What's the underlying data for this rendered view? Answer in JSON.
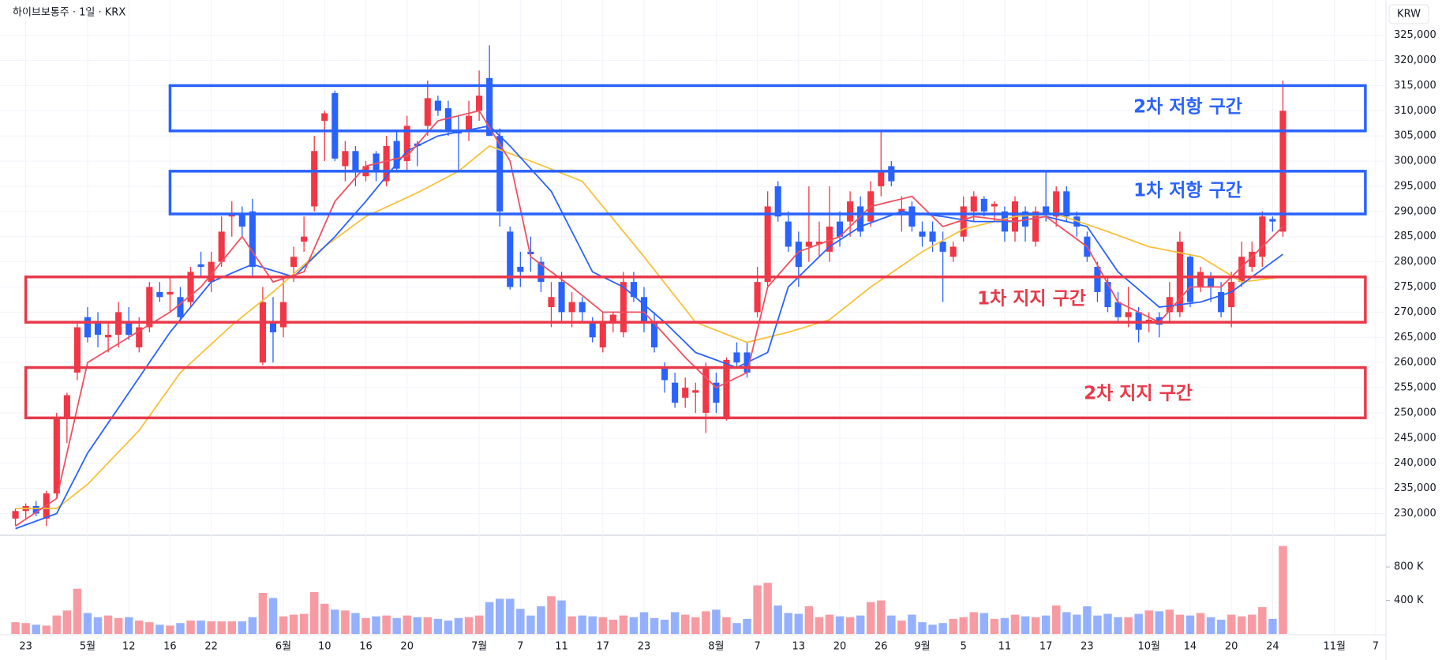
{
  "chart_data": {
    "type": "candlestick",
    "title": "하이브보통주 · 1일 · KRX",
    "currency": "KRW",
    "candles": {
      "open": [
        229000,
        230500,
        231500,
        229000,
        234000,
        249000,
        258000,
        269000,
        268000,
        265000,
        265500,
        268000,
        263000,
        267000,
        274000,
        273500,
        273000,
        272000,
        279500,
        276000,
        280000,
        289000,
        289500,
        290000,
        260000,
        268000,
        267000,
        279000,
        284000,
        291000,
        308000,
        313500,
        299000,
        302000,
        297000,
        301500,
        296000,
        304000,
        300000,
        303500,
        307000,
        312000,
        310500,
        306000,
        306000,
        310000,
        316500,
        305000,
        286000,
        279000,
        282000,
        280000,
        271000,
        276000,
        270000,
        272000,
        268000,
        263000,
        268000,
        266000,
        276000,
        273000,
        268000,
        259000,
        256000,
        253000,
        254000,
        250000,
        256000,
        249000,
        262000,
        262000,
        270000,
        276000,
        295000,
        288000,
        284000,
        283000,
        283500,
        282000,
        288000,
        288000,
        291000,
        288000,
        295000,
        299000,
        290000,
        291000,
        286000,
        286000,
        284000,
        281000,
        285000,
        290000,
        292500,
        291000,
        290000,
        286000,
        290000,
        284000,
        291000,
        289000,
        294000,
        289000,
        285000,
        279000,
        276000,
        272000,
        269000,
        270000,
        268000,
        269000,
        270000,
        270000,
        281000,
        275000,
        277000,
        274000,
        271000,
        276000,
        279000,
        281000,
        288500,
        286000
      ],
      "high": [
        231000,
        232000,
        232500,
        234500,
        250000,
        254000,
        268000,
        271000,
        270000,
        268000,
        272000,
        271000,
        269000,
        276000,
        276000,
        277000,
        275000,
        279000,
        282000,
        282000,
        289000,
        292000,
        291000,
        292500,
        275000,
        273000,
        277000,
        283000,
        289000,
        305000,
        310000,
        314000,
        304000,
        303000,
        300000,
        302000,
        305000,
        306000,
        309000,
        304000,
        316000,
        313000,
        312000,
        309000,
        312000,
        318000,
        323000,
        306500,
        287000,
        282000,
        285000,
        281000,
        276000,
        278000,
        274000,
        273000,
        269000,
        270000,
        270000,
        278000,
        278000,
        275000,
        270000,
        260000,
        258000,
        257000,
        256000,
        260000,
        258000,
        261000,
        264000,
        264000,
        279000,
        294000,
        296000,
        290000,
        286000,
        295000,
        288000,
        295000,
        290000,
        294000,
        293000,
        296000,
        306000,
        300000,
        293000,
        292000,
        288000,
        288000,
        286000,
        284000,
        293000,
        294000,
        293000,
        292000,
        291000,
        293000,
        291000,
        291000,
        298000,
        295000,
        295000,
        290000,
        286000,
        280000,
        277000,
        274000,
        275000,
        271000,
        270000,
        270000,
        276000,
        286000,
        281500,
        279000,
        278000,
        276000,
        278000,
        284000,
        284000,
        290000,
        289000,
        316000
      ],
      "low": [
        227500,
        229000,
        229500,
        227500,
        233000,
        244000,
        256500,
        264000,
        263000,
        262000,
        263000,
        264500,
        262000,
        266000,
        272000,
        270000,
        268000,
        271000,
        277000,
        274000,
        279000,
        285000,
        285000,
        277000,
        259500,
        260000,
        265000,
        276000,
        282000,
        290000,
        300000,
        300000,
        296000,
        295000,
        296000,
        296000,
        295000,
        298000,
        298000,
        299000,
        305000,
        309000,
        305000,
        298000,
        304000,
        308000,
        305000,
        287000,
        274500,
        275000,
        278000,
        274000,
        267000,
        268000,
        267000,
        268000,
        264000,
        262000,
        266000,
        265000,
        272000,
        266000,
        262000,
        254000,
        251000,
        251000,
        250000,
        246000,
        250000,
        248500,
        259000,
        257000,
        269000,
        275000,
        288000,
        282000,
        275000,
        280000,
        281000,
        280000,
        283000,
        285000,
        285000,
        287000,
        293000,
        295000,
        286000,
        286000,
        283000,
        282000,
        272000,
        280000,
        284000,
        288000,
        289000,
        288000,
        284000,
        284000,
        284000,
        283000,
        288000,
        287000,
        288000,
        285000,
        280000,
        272000,
        270000,
        268000,
        267000,
        264000,
        266000,
        265000,
        268000,
        269000,
        271000,
        274000,
        272000,
        269000,
        267000,
        275000,
        278000,
        279000,
        286000,
        285000
      ],
      "close": [
        230500,
        231500,
        230000,
        234000,
        249000,
        253500,
        267000,
        265000,
        265500,
        265500,
        270000,
        265500,
        267000,
        275000,
        273000,
        274000,
        269000,
        278000,
        279000,
        280000,
        286000,
        289500,
        287000,
        279000,
        272000,
        266000,
        272000,
        281000,
        285000,
        302000,
        309500,
        300500,
        302000,
        298000,
        299000,
        298000,
        303000,
        298500,
        307000,
        303000,
        312500,
        310000,
        306000,
        305500,
        309000,
        313000,
        305000,
        290000,
        275000,
        278000,
        281500,
        276000,
        273000,
        270000,
        272000,
        270000,
        265000,
        268000,
        269500,
        276000,
        273000,
        268000,
        263000,
        256500,
        252000,
        255000,
        254500,
        259000,
        252000,
        260500,
        260000,
        258000,
        276000,
        291000,
        289000,
        283000,
        279000,
        284000,
        284000,
        287000,
        285000,
        292000,
        286000,
        294000,
        298000,
        296000,
        290500,
        287000,
        285000,
        284000,
        282000,
        283000,
        291000,
        293000,
        290000,
        291500,
        286000,
        292000,
        287000,
        290000,
        289500,
        294000,
        289000,
        287000,
        281000,
        274000,
        271000,
        269000,
        270000,
        266500,
        268500,
        267500,
        273000,
        284000,
        272000,
        278000,
        275000,
        270000,
        276000,
        281000,
        282000,
        289000,
        288000,
        310000
      ]
    },
    "up_color": "#f23645",
    "down_color": "#2962ff",
    "volume": [
      140000,
      130000,
      110000,
      100000,
      220000,
      280000,
      540000,
      250000,
      200000,
      220000,
      190000,
      200000,
      160000,
      140000,
      110000,
      100000,
      130000,
      160000,
      160000,
      150000,
      150000,
      150000,
      150000,
      200000,
      490000,
      430000,
      210000,
      230000,
      240000,
      500000,
      360000,
      290000,
      280000,
      250000,
      190000,
      210000,
      220000,
      190000,
      220000,
      200000,
      200000,
      180000,
      160000,
      190000,
      200000,
      220000,
      380000,
      420000,
      420000,
      300000,
      220000,
      330000,
      450000,
      400000,
      210000,
      220000,
      210000,
      200000,
      170000,
      220000,
      200000,
      260000,
      190000,
      170000,
      260000,
      230000,
      200000,
      270000,
      290000,
      200000,
      130000,
      180000,
      580000,
      610000,
      340000,
      250000,
      240000,
      330000,
      200000,
      230000,
      210000,
      200000,
      220000,
      380000,
      400000,
      220000,
      160000,
      230000,
      140000,
      110000,
      130000,
      180000,
      200000,
      260000,
      250000,
      180000,
      190000,
      230000,
      210000,
      200000,
      220000,
      340000,
      260000,
      230000,
      330000,
      220000,
      240000,
      200000,
      200000,
      240000,
      280000,
      270000,
      290000,
      230000,
      220000,
      250000,
      200000,
      170000,
      230000,
      210000,
      230000,
      320000,
      180000,
      1050000
    ],
    "moving_averages": [
      {
        "color": "#f7c13a",
        "x": [
          0,
          4,
          7,
          12,
          16,
          21,
          25,
          30,
          34,
          39,
          43,
          46,
          50,
          55,
          57,
          61,
          66,
          71,
          75,
          79,
          83,
          88,
          92,
          97,
          101,
          106,
          110,
          115,
          119,
          123
        ],
        "values": [
          231000,
          231000,
          235800,
          246500,
          258000,
          267400,
          274000,
          283000,
          289000,
          293700,
          298000,
          303000,
          300000,
          296000,
          291000,
          281000,
          268000,
          264000,
          266000,
          268500,
          275000,
          282000,
          286500,
          289000,
          289500,
          286000,
          283000,
          281000,
          276000,
          277000
        ]
      },
      {
        "color": "#2962ff",
        "x": [
          0,
          4,
          7,
          12,
          15,
          19,
          23,
          27,
          31,
          34,
          38,
          41,
          46,
          48,
          52,
          56,
          59,
          63,
          66,
          70,
          73,
          75,
          79,
          82,
          86,
          90,
          93,
          97,
          100,
          104,
          107,
          111,
          115,
          118,
          123
        ],
        "values": [
          227000,
          230000,
          242000,
          257000,
          266000,
          276000,
          279500,
          277000,
          285000,
          292000,
          302000,
          305000,
          307000,
          303000,
          294000,
          278000,
          275000,
          268000,
          262000,
          259000,
          262000,
          275000,
          283000,
          287000,
          290000,
          289000,
          288000,
          288000,
          289000,
          287000,
          278000,
          271000,
          272000,
          274000,
          281500
        ]
      },
      {
        "color": "#f05060",
        "x": [
          0,
          4,
          7,
          11,
          15,
          18,
          22,
          25,
          28,
          31,
          34,
          38,
          41,
          45,
          48,
          50,
          54,
          57,
          61,
          65,
          68,
          71,
          73,
          76,
          80,
          83,
          87,
          90,
          93,
          97,
          100,
          104,
          107,
          111,
          114,
          117,
          123
        ],
        "values": [
          227500,
          233000,
          260000,
          265000,
          270000,
          275000,
          285000,
          276000,
          278000,
          292000,
          299000,
          301000,
          308000,
          310000,
          300000,
          281000,
          275000,
          270000,
          270000,
          261000,
          255000,
          258000,
          275000,
          282000,
          285000,
          291000,
          293000,
          287000,
          289000,
          288000,
          289000,
          283000,
          272000,
          268000,
          275000,
          275000,
          287000
        ]
      }
    ],
    "zones": [
      {
        "label": "2차 저항 구간",
        "color": "#2962ff",
        "ylim": [
          306000,
          315000
        ],
        "xlim": [
          15,
          131
        ]
      },
      {
        "label": "1차 저항 구간",
        "color": "#2962ff",
        "ylim": [
          289500,
          298000
        ],
        "xlim": [
          15,
          131
        ]
      },
      {
        "label": "1차 지지 구간",
        "color": "#e8394a",
        "ylim": [
          268000,
          277000
        ],
        "xlim": [
          1,
          131
        ]
      },
      {
        "label": "2차 지지 구간",
        "color": "#e8394a",
        "ylim": [
          249000,
          259000
        ],
        "xlim": [
          1,
          131
        ]
      }
    ],
    "xlim": [
      -1.5,
      133
    ],
    "xticks": [
      {
        "value": 1,
        "label": "23"
      },
      {
        "value": 7,
        "label": "5월"
      },
      {
        "value": 11,
        "label": "12"
      },
      {
        "value": 15,
        "label": "16"
      },
      {
        "value": 19,
        "label": "22"
      },
      {
        "value": 26,
        "label": "6월"
      },
      {
        "value": 30,
        "label": "10"
      },
      {
        "value": 34,
        "label": "16"
      },
      {
        "value": 38,
        "label": "20"
      },
      {
        "value": 45,
        "label": "7월"
      },
      {
        "value": 49,
        "label": "7"
      },
      {
        "value": 53,
        "label": "11"
      },
      {
        "value": 57,
        "label": "17"
      },
      {
        "value": 61,
        "label": "23"
      },
      {
        "value": 68,
        "label": "8월"
      },
      {
        "value": 72,
        "label": "7"
      },
      {
        "value": 76,
        "label": "13"
      },
      {
        "value": 80,
        "label": "20"
      },
      {
        "value": 84,
        "label": "26"
      },
      {
        "value": 88,
        "label": "9월"
      },
      {
        "value": 92,
        "label": "5"
      },
      {
        "value": 96,
        "label": "11"
      },
      {
        "value": 100,
        "label": "17"
      },
      {
        "value": 104,
        "label": "23"
      },
      {
        "value": 110,
        "label": "10월"
      },
      {
        "value": 114,
        "label": "14"
      },
      {
        "value": 118,
        "label": "20"
      },
      {
        "value": 122,
        "label": "24"
      },
      {
        "value": 128,
        "label": "11월"
      },
      {
        "value": 132,
        "label": "7"
      }
    ],
    "ylim": [
      226000,
      332000
    ],
    "yticks": [
      {
        "value": 230000,
        "label": "230,000"
      },
      {
        "value": 235000,
        "label": "235,000"
      },
      {
        "value": 240000,
        "label": "240,000"
      },
      {
        "value": 245000,
        "label": "245,000"
      },
      {
        "value": 250000,
        "label": "250,000"
      },
      {
        "value": 255000,
        "label": "255,000"
      },
      {
        "value": 260000,
        "label": "260,000"
      },
      {
        "value": 265000,
        "label": "265,000"
      },
      {
        "value": 270000,
        "label": "270,000"
      },
      {
        "value": 275000,
        "label": "275,000"
      },
      {
        "value": 280000,
        "label": "280,000"
      },
      {
        "value": 285000,
        "label": "285,000"
      },
      {
        "value": 290000,
        "label": "290,000"
      },
      {
        "value": 295000,
        "label": "295,000"
      },
      {
        "value": 300000,
        "label": "300,000"
      },
      {
        "value": 305000,
        "label": "305,000"
      },
      {
        "value": 310000,
        "label": "310,000"
      },
      {
        "value": 315000,
        "label": "315,000"
      },
      {
        "value": 320000,
        "label": "320,000"
      },
      {
        "value": 325000,
        "label": "325,000"
      }
    ],
    "vlim": [
      0,
      1150000
    ],
    "vticks": [
      {
        "value": 400000,
        "label": "400 K"
      },
      {
        "value": 800000,
        "label": "800 K"
      }
    ],
    "grid": true
  }
}
